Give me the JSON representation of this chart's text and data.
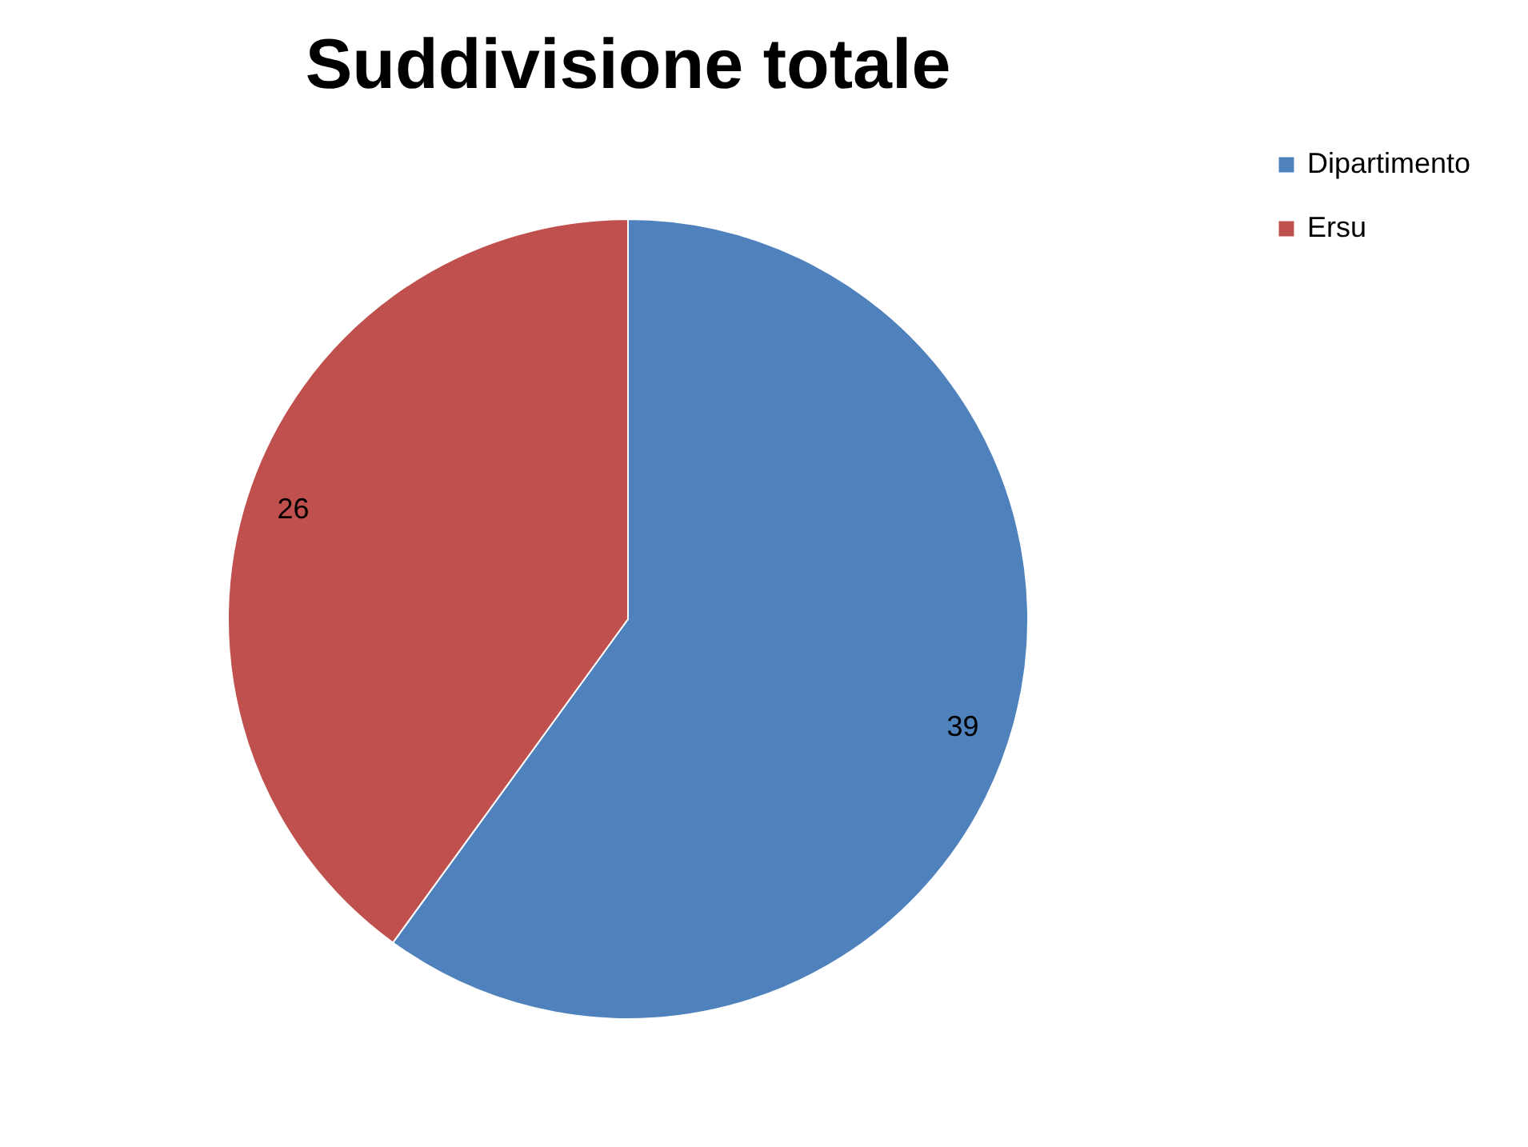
{
  "chart_data": {
    "type": "pie",
    "title": "Suddivisione totale",
    "categories": [
      "Dipartimento",
      "Ersu"
    ],
    "values": [
      39,
      26
    ],
    "colors": [
      "#4f81bd",
      "#c0504d"
    ],
    "data_labels": true,
    "legend": "right"
  }
}
